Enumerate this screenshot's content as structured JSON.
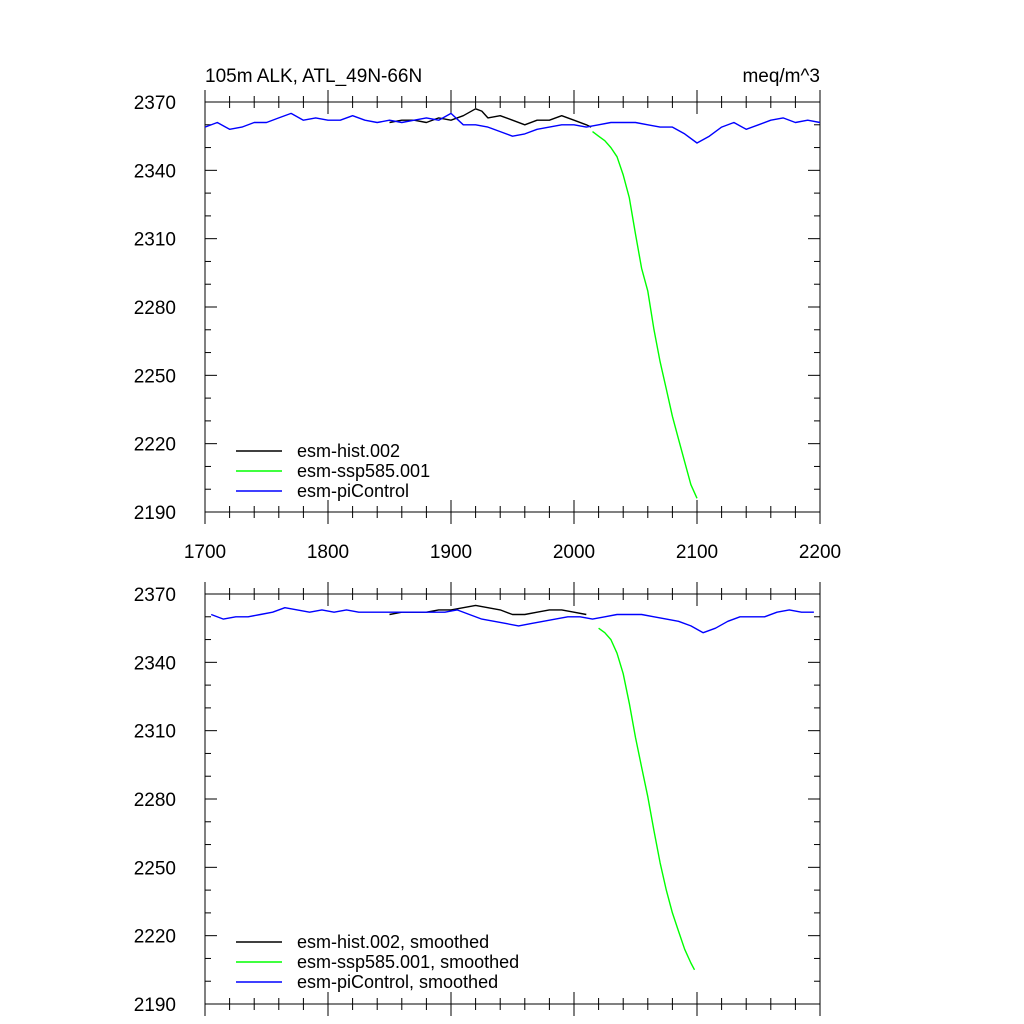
{
  "title_left": "105m ALK, ATL_49N-66N",
  "title_right": "meq/m^3",
  "colors": {
    "esm-hist.002": "#000000",
    "esm-ssp585.001": "#00ff00",
    "esm-piControl": "#0000ff"
  },
  "chart_data": [
    {
      "type": "line",
      "title": "105m ALK, ATL_49N-66N",
      "units": "meq/m^3",
      "xlim": [
        1700,
        2200
      ],
      "ylim": [
        2190,
        2370
      ],
      "x_ticks": [
        "1700",
        "1800",
        "1900",
        "2000",
        "2100",
        "2200"
      ],
      "y_ticks": [
        "2190",
        "2220",
        "2250",
        "2280",
        "2310",
        "2340",
        "2370"
      ],
      "legend_position": "bottom-left",
      "grid": false,
      "series": [
        {
          "name": "esm-hist.002",
          "color": "#000000",
          "x": [
            1850,
            1860,
            1870,
            1880,
            1890,
            1900,
            1910,
            1920,
            1925,
            1930,
            1940,
            1950,
            1960,
            1970,
            1980,
            1990,
            2000,
            2010,
            2014
          ],
          "y": [
            2361,
            2362,
            2362,
            2361,
            2363,
            2362,
            2364,
            2367,
            2366,
            2363,
            2364,
            2362,
            2360,
            2362,
            2362,
            2364,
            2362,
            2360,
            2359
          ]
        },
        {
          "name": "esm-ssp585.001",
          "color": "#00ff00",
          "x": [
            2015,
            2020,
            2025,
            2030,
            2035,
            2040,
            2045,
            2050,
            2055,
            2060,
            2065,
            2070,
            2075,
            2080,
            2085,
            2090,
            2095,
            2100
          ],
          "y": [
            2357,
            2355,
            2353,
            2350,
            2346,
            2338,
            2328,
            2312,
            2297,
            2287,
            2270,
            2256,
            2244,
            2232,
            2222,
            2212,
            2202,
            2196
          ]
        },
        {
          "name": "esm-piControl",
          "color": "#0000ff",
          "x": [
            1700,
            1710,
            1720,
            1730,
            1740,
            1750,
            1760,
            1770,
            1780,
            1790,
            1800,
            1810,
            1820,
            1830,
            1840,
            1850,
            1860,
            1870,
            1880,
            1890,
            1900,
            1910,
            1920,
            1930,
            1940,
            1950,
            1960,
            1970,
            1980,
            1990,
            2000,
            2010,
            2020,
            2030,
            2040,
            2050,
            2060,
            2070,
            2080,
            2090,
            2100,
            2110,
            2120,
            2130,
            2140,
            2150,
            2160,
            2170,
            2180,
            2190,
            2200
          ],
          "y": [
            2359,
            2361,
            2358,
            2359,
            2361,
            2361,
            2363,
            2365,
            2362,
            2363,
            2362,
            2362,
            2364,
            2362,
            2361,
            2362,
            2361,
            2362,
            2363,
            2362,
            2365,
            2360,
            2360,
            2359,
            2357,
            2355,
            2356,
            2358,
            2359,
            2360,
            2360,
            2359,
            2360,
            2361,
            2361,
            2361,
            2360,
            2359,
            2359,
            2356,
            2352,
            2355,
            2359,
            2361,
            2358,
            2360,
            2362,
            2363,
            2361,
            2362,
            2361
          ]
        }
      ]
    },
    {
      "type": "line",
      "xlim": [
        1700,
        2200
      ],
      "ylim": [
        2190,
        2370
      ],
      "y_ticks": [
        "2190",
        "2220",
        "2250",
        "2280",
        "2310",
        "2340",
        "2370"
      ],
      "legend_position": "bottom-left",
      "grid": false,
      "series": [
        {
          "name": "esm-hist.002, smoothed",
          "color": "#000000",
          "x": [
            1850,
            1860,
            1870,
            1880,
            1890,
            1900,
            1910,
            1920,
            1930,
            1940,
            1950,
            1960,
            1970,
            1980,
            1990,
            2000,
            2010
          ],
          "y": [
            2361,
            2362,
            2362,
            2362,
            2363,
            2363,
            2364,
            2365,
            2364,
            2363,
            2361,
            2361,
            2362,
            2363,
            2363,
            2362,
            2361
          ]
        },
        {
          "name": "esm-ssp585.001, smoothed",
          "color": "#00ff00",
          "x": [
            2020,
            2025,
            2030,
            2035,
            2040,
            2045,
            2050,
            2055,
            2060,
            2065,
            2070,
            2075,
            2080,
            2085,
            2090,
            2095,
            2098
          ],
          "y": [
            2355,
            2353,
            2350,
            2344,
            2335,
            2322,
            2307,
            2294,
            2281,
            2266,
            2252,
            2240,
            2230,
            2222,
            2214,
            2208,
            2205
          ]
        },
        {
          "name": "esm-piControl, smoothed",
          "color": "#0000ff",
          "x": [
            1705,
            1715,
            1725,
            1735,
            1745,
            1755,
            1765,
            1775,
            1785,
            1795,
            1805,
            1815,
            1825,
            1835,
            1845,
            1855,
            1865,
            1875,
            1885,
            1895,
            1905,
            1915,
            1925,
            1935,
            1945,
            1955,
            1965,
            1975,
            1985,
            1995,
            2005,
            2015,
            2025,
            2035,
            2045,
            2055,
            2065,
            2075,
            2085,
            2095,
            2105,
            2115,
            2125,
            2135,
            2145,
            2155,
            2165,
            2175,
            2185,
            2195
          ],
          "y": [
            2361,
            2359,
            2360,
            2360,
            2361,
            2362,
            2364,
            2363,
            2362,
            2363,
            2362,
            2363,
            2362,
            2362,
            2362,
            2362,
            2362,
            2362,
            2362,
            2362,
            2363,
            2361,
            2359,
            2358,
            2357,
            2356,
            2357,
            2358,
            2359,
            2360,
            2360,
            2359,
            2360,
            2361,
            2361,
            2361,
            2360,
            2359,
            2358,
            2356,
            2353,
            2355,
            2358,
            2360,
            2360,
            2360,
            2362,
            2363,
            2362,
            2362
          ]
        }
      ]
    }
  ]
}
